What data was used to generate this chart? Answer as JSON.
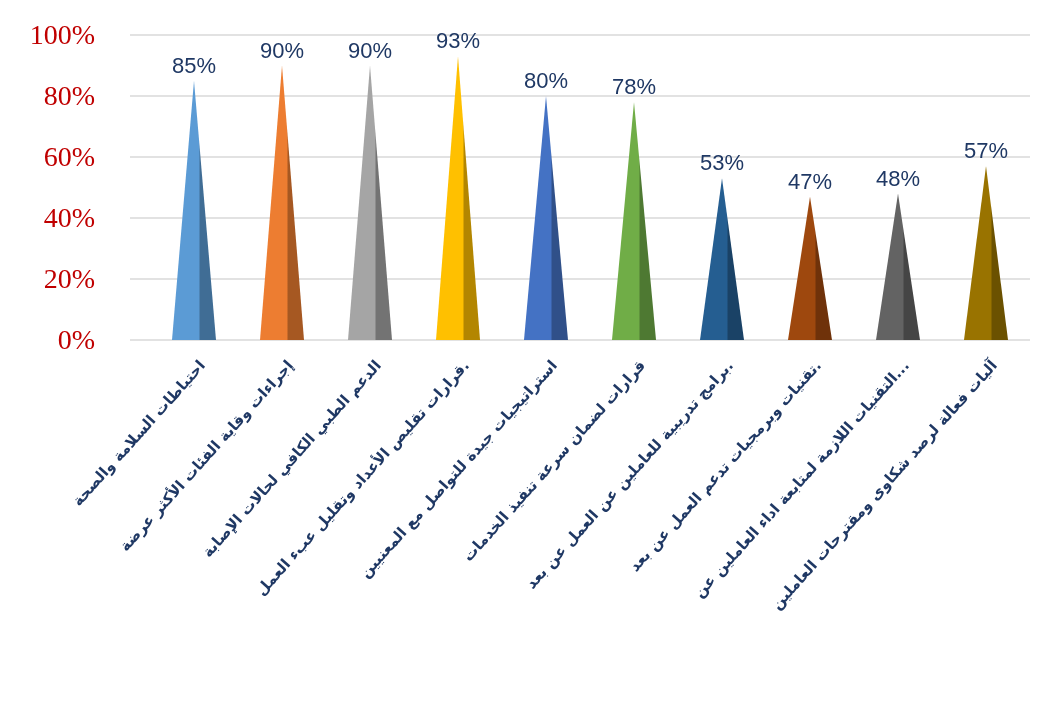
{
  "chart_data": {
    "type": "bar",
    "categories": [
      "احتياطات السلامة والصحة",
      "إجراءات وقاية الفئات الأكثر عرضة",
      "الدعم الطبي الكافي لحالات الإصابة",
      "قرارات تقليص الأعداد وتقليل عبء العمل.",
      "استراتيجيات جيدة للتواصل مع المعنيين",
      "قرارات لضمان سرعة تنفيذ الخدمات",
      "برامج تدريبية للعاملين عن العمل عن بعد.",
      "تقنيات وبرمجيات تدعم العمل عن بعد.",
      "التقنيات اللازمة لمتابعة اداء العاملين عن...",
      "آليات فعالة لرصد شكاوى ومقترحات العاملين"
    ],
    "values": [
      85,
      90,
      90,
      93,
      80,
      78,
      53,
      47,
      48,
      57
    ],
    "colors": [
      "#5b9bd5",
      "#ed7d31",
      "#a5a5a5",
      "#ffc000",
      "#4472c4",
      "#70ad47",
      "#255e91",
      "#9e480e",
      "#636363",
      "#997300"
    ],
    "ylim": [
      0,
      100
    ],
    "yticks": [
      {
        "value": 0,
        "label": "0%"
      },
      {
        "value": 20,
        "label": "20%"
      },
      {
        "value": 40,
        "label": "40%"
      },
      {
        "value": 60,
        "label": "60%"
      },
      {
        "value": 80,
        "label": "80%"
      },
      {
        "value": 100,
        "label": "100%"
      }
    ],
    "value_labels": [
      "85%",
      "90%",
      "90%",
      "93%",
      "80%",
      "78%",
      "53%",
      "47%",
      "48%",
      "57%"
    ],
    "grid": "y"
  }
}
